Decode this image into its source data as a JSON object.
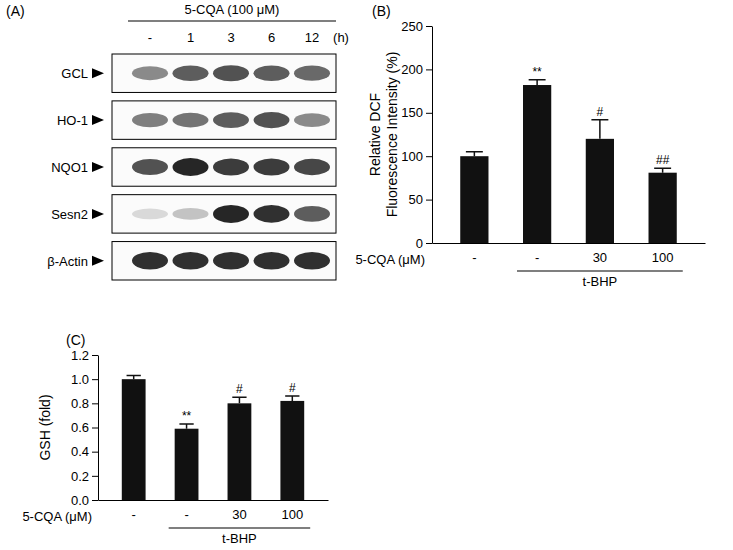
{
  "blot": {
    "panel_label": "(A)",
    "treatment": "5-CQA (100 μM)",
    "lanes": [
      "-",
      "1",
      "3",
      "6",
      "12"
    ],
    "unit": "(h)",
    "proteins": [
      {
        "name": "GCL",
        "intensities": [
          0.5,
          0.7,
          0.75,
          0.7,
          0.65
        ]
      },
      {
        "name": "HO-1",
        "intensities": [
          0.55,
          0.6,
          0.7,
          0.75,
          0.5
        ]
      },
      {
        "name": "NQO1",
        "intensities": [
          0.75,
          0.95,
          0.85,
          0.85,
          0.8
        ]
      },
      {
        "name": "Sesn2",
        "intensities": [
          0.15,
          0.25,
          0.95,
          0.9,
          0.7
        ]
      },
      {
        "name": "β-Actin",
        "intensities": [
          0.9,
          0.9,
          0.9,
          0.9,
          0.9
        ]
      }
    ]
  },
  "chart_data": [
    {
      "type": "bar",
      "panel_label": "(B)",
      "y_label": [
        "Relative DCF",
        "Fluorescence Intensity (%)"
      ],
      "x_label": "5-CQA (μM)",
      "categories": [
        "-",
        "-",
        "30",
        "100"
      ],
      "values": [
        100,
        182,
        120,
        81
      ],
      "error": [
        5,
        6,
        22,
        5
      ],
      "significance": [
        null,
        "**",
        "#",
        "##"
      ],
      "group": {
        "label": "t-BHP",
        "from": 1,
        "to": 3
      },
      "color": "#111111",
      "ylim": [
        0,
        250
      ],
      "yticks": [
        0,
        50,
        100,
        150,
        200,
        250
      ]
    },
    {
      "type": "bar",
      "panel_label": "(C)",
      "y_label": [
        "GSH (fold)"
      ],
      "x_label": "5-CQA (μM)",
      "categories": [
        "-",
        "-",
        "30",
        "100"
      ],
      "values": [
        1.0,
        0.59,
        0.8,
        0.82
      ],
      "error": [
        0.03,
        0.04,
        0.05,
        0.04
      ],
      "significance": [
        null,
        "**",
        "#",
        "#"
      ],
      "group": {
        "label": "t-BHP",
        "from": 1,
        "to": 3
      },
      "color": "#111111",
      "ylim": [
        0,
        1.2
      ],
      "yticks": [
        {
          "value": 0,
          "label": "0.0"
        },
        0.2,
        0.4,
        0.6,
        0.8,
        {
          "value": 1,
          "label": "1.0"
        },
        1.2
      ]
    }
  ]
}
